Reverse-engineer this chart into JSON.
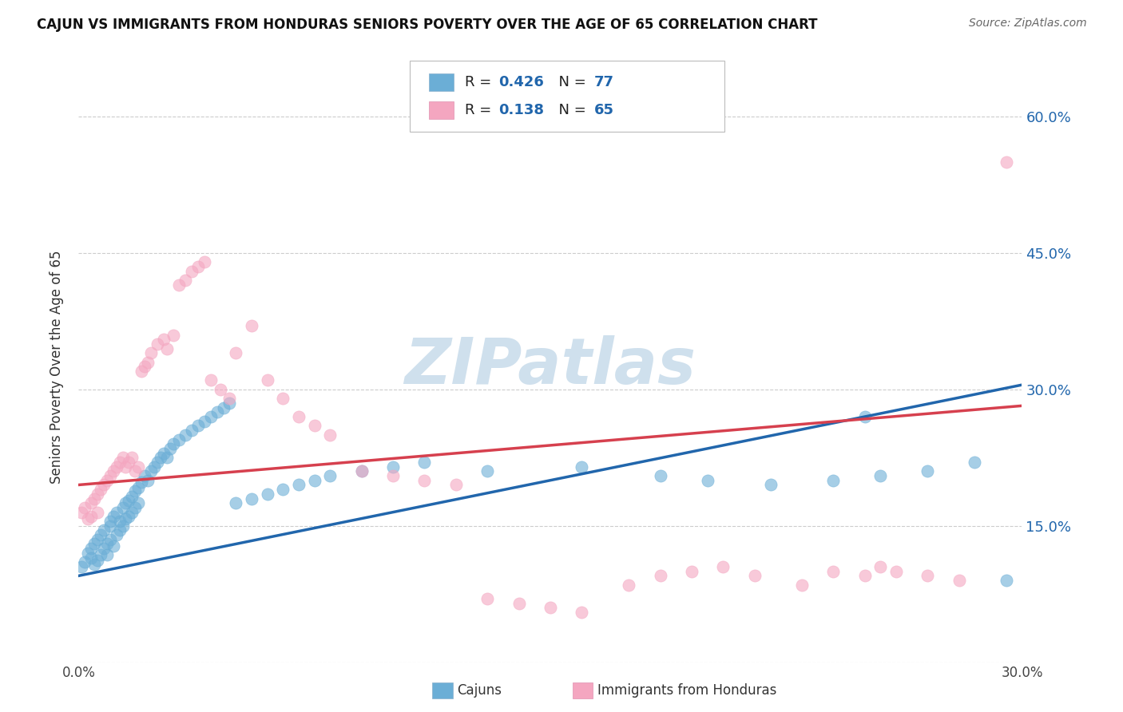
{
  "title": "CAJUN VS IMMIGRANTS FROM HONDURAS SENIORS POVERTY OVER THE AGE OF 65 CORRELATION CHART",
  "source": "Source: ZipAtlas.com",
  "ylabel": "Seniors Poverty Over the Age of 65",
  "xmin": 0.0,
  "xmax": 0.3,
  "ymin": 0.0,
  "ymax": 0.65,
  "yticks": [
    0.0,
    0.15,
    0.3,
    0.45,
    0.6
  ],
  "xticks": [
    0.0,
    0.05,
    0.1,
    0.15,
    0.2,
    0.25,
    0.3
  ],
  "xtick_labels": [
    "0.0%",
    "",
    "",
    "",
    "",
    "",
    "30.0%"
  ],
  "ytick_labels": [
    "",
    "15.0%",
    "30.0%",
    "45.0%",
    "60.0%"
  ],
  "cajuns_R": 0.426,
  "cajuns_N": 77,
  "honduras_R": 0.138,
  "honduras_N": 65,
  "blue_color": "#6baed6",
  "pink_color": "#f4a6c0",
  "line_blue": "#2166ac",
  "line_pink": "#d6404e",
  "watermark": "ZIPatlas",
  "watermark_color": "#cfe0ed",
  "legend_label_cajuns": "Cajuns",
  "legend_label_honduras": "Immigrants from Honduras",
  "cajun_line_x0": 0.0,
  "cajun_line_y0": 0.095,
  "cajun_line_x1": 0.3,
  "cajun_line_y1": 0.305,
  "honduras_line_x0": 0.0,
  "honduras_line_y0": 0.195,
  "honduras_line_x1": 0.3,
  "honduras_line_y1": 0.282,
  "cajuns_x": [
    0.001,
    0.002,
    0.003,
    0.004,
    0.004,
    0.005,
    0.005,
    0.006,
    0.006,
    0.007,
    0.007,
    0.008,
    0.008,
    0.009,
    0.009,
    0.01,
    0.01,
    0.01,
    0.011,
    0.011,
    0.012,
    0.012,
    0.013,
    0.013,
    0.014,
    0.014,
    0.015,
    0.015,
    0.016,
    0.016,
    0.017,
    0.017,
    0.018,
    0.018,
    0.019,
    0.019,
    0.02,
    0.021,
    0.022,
    0.023,
    0.024,
    0.025,
    0.026,
    0.027,
    0.028,
    0.029,
    0.03,
    0.032,
    0.034,
    0.036,
    0.038,
    0.04,
    0.042,
    0.044,
    0.046,
    0.048,
    0.05,
    0.055,
    0.06,
    0.065,
    0.07,
    0.075,
    0.08,
    0.09,
    0.1,
    0.11,
    0.13,
    0.16,
    0.185,
    0.2,
    0.22,
    0.24,
    0.255,
    0.25,
    0.27,
    0.285,
    0.295
  ],
  "cajuns_y": [
    0.105,
    0.11,
    0.12,
    0.125,
    0.115,
    0.13,
    0.108,
    0.135,
    0.112,
    0.118,
    0.14,
    0.125,
    0.145,
    0.13,
    0.118,
    0.135,
    0.15,
    0.155,
    0.128,
    0.16,
    0.14,
    0.165,
    0.145,
    0.155,
    0.15,
    0.17,
    0.158,
    0.175,
    0.16,
    0.178,
    0.165,
    0.182,
    0.17,
    0.188,
    0.175,
    0.192,
    0.198,
    0.205,
    0.2,
    0.21,
    0.215,
    0.22,
    0.225,
    0.23,
    0.225,
    0.235,
    0.24,
    0.245,
    0.25,
    0.255,
    0.26,
    0.265,
    0.27,
    0.275,
    0.28,
    0.285,
    0.175,
    0.18,
    0.185,
    0.19,
    0.195,
    0.2,
    0.205,
    0.21,
    0.215,
    0.22,
    0.21,
    0.215,
    0.205,
    0.2,
    0.195,
    0.2,
    0.205,
    0.27,
    0.21,
    0.22,
    0.09
  ],
  "honduras_x": [
    0.001,
    0.002,
    0.003,
    0.004,
    0.004,
    0.005,
    0.006,
    0.006,
    0.007,
    0.008,
    0.009,
    0.01,
    0.011,
    0.012,
    0.013,
    0.014,
    0.015,
    0.016,
    0.017,
    0.018,
    0.019,
    0.02,
    0.021,
    0.022,
    0.023,
    0.025,
    0.027,
    0.028,
    0.03,
    0.032,
    0.034,
    0.036,
    0.038,
    0.04,
    0.042,
    0.045,
    0.048,
    0.05,
    0.055,
    0.06,
    0.065,
    0.07,
    0.075,
    0.08,
    0.09,
    0.1,
    0.11,
    0.12,
    0.13,
    0.14,
    0.15,
    0.16,
    0.175,
    0.185,
    0.195,
    0.205,
    0.215,
    0.23,
    0.24,
    0.25,
    0.255,
    0.26,
    0.27,
    0.28,
    0.295
  ],
  "honduras_y": [
    0.165,
    0.17,
    0.158,
    0.175,
    0.16,
    0.18,
    0.185,
    0.165,
    0.19,
    0.195,
    0.2,
    0.205,
    0.21,
    0.215,
    0.22,
    0.225,
    0.215,
    0.22,
    0.225,
    0.21,
    0.215,
    0.32,
    0.325,
    0.33,
    0.34,
    0.35,
    0.355,
    0.345,
    0.36,
    0.415,
    0.42,
    0.43,
    0.435,
    0.44,
    0.31,
    0.3,
    0.29,
    0.34,
    0.37,
    0.31,
    0.29,
    0.27,
    0.26,
    0.25,
    0.21,
    0.205,
    0.2,
    0.195,
    0.07,
    0.065,
    0.06,
    0.055,
    0.085,
    0.095,
    0.1,
    0.105,
    0.095,
    0.085,
    0.1,
    0.095,
    0.105,
    0.1,
    0.095,
    0.09,
    0.55
  ]
}
